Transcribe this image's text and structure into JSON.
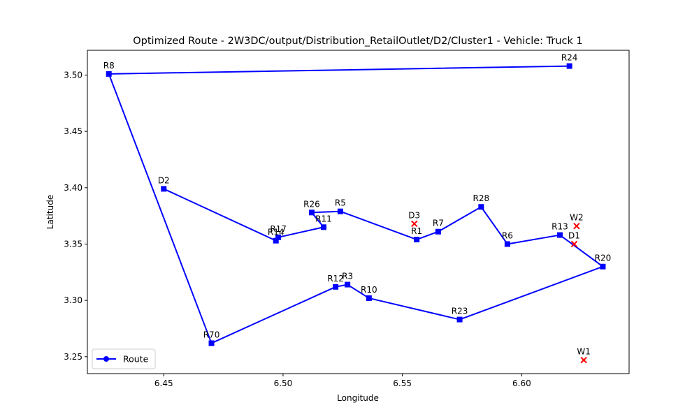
{
  "chart_data": {
    "type": "line",
    "title": "Optimized Route - 2W3DC/output/Distribution_RetailOutlet/D2/Cluster1 - Vehicle: Truck 1",
    "xlabel": "Longitude",
    "ylabel": "Latitude",
    "xlim": [
      6.418,
      6.645
    ],
    "ylim": [
      3.235,
      3.522
    ],
    "xticks": [
      "6.45",
      "6.50",
      "6.55",
      "6.60"
    ],
    "xtick_values": [
      6.45,
      6.5,
      6.55,
      6.6
    ],
    "yticks": [
      "3.25",
      "3.30",
      "3.35",
      "3.40",
      "3.45",
      "3.50"
    ],
    "ytick_values": [
      3.25,
      3.3,
      3.35,
      3.4,
      3.45,
      3.5
    ],
    "grid": false,
    "legend": {
      "position": "lower-left",
      "entries": [
        "Route"
      ]
    },
    "colors": {
      "route": "#0000ff",
      "depot_marker": "#ff0000"
    },
    "series": [
      {
        "name": "Route",
        "points": [
          {
            "label": "R24",
            "x": 6.62,
            "y": 3.508
          },
          {
            "label": "R8",
            "x": 6.427,
            "y": 3.501
          },
          {
            "label": "R70",
            "x": 6.47,
            "y": 3.262
          },
          {
            "label": "R12",
            "x": 6.522,
            "y": 3.312
          },
          {
            "label": "R3",
            "x": 6.527,
            "y": 3.314
          },
          {
            "label": "R10",
            "x": 6.536,
            "y": 3.302
          },
          {
            "label": "R23",
            "x": 6.574,
            "y": 3.283
          },
          {
            "label": "R20",
            "x": 6.634,
            "y": 3.33
          },
          {
            "label": "R13",
            "x": 6.616,
            "y": 3.358
          },
          {
            "label": "R6",
            "x": 6.594,
            "y": 3.35
          },
          {
            "label": "R28",
            "x": 6.583,
            "y": 3.383
          },
          {
            "label": "R7",
            "x": 6.565,
            "y": 3.361
          },
          {
            "label": "R1",
            "x": 6.556,
            "y": 3.354
          },
          {
            "label": "R5",
            "x": 6.524,
            "y": 3.379
          },
          {
            "label": "R26",
            "x": 6.512,
            "y": 3.378
          },
          {
            "label": "R11",
            "x": 6.517,
            "y": 3.365
          },
          {
            "label": "R17",
            "x": 6.498,
            "y": 3.356
          },
          {
            "label": "R14",
            "x": 6.497,
            "y": 3.353
          },
          {
            "label": "D2",
            "x": 6.45,
            "y": 3.399
          }
        ]
      }
    ],
    "markers": [
      {
        "label": "D3",
        "x": 6.555,
        "y": 3.368
      },
      {
        "label": "W2",
        "x": 6.623,
        "y": 3.366
      },
      {
        "label": "D1",
        "x": 6.622,
        "y": 3.35
      },
      {
        "label": "W1",
        "x": 6.626,
        "y": 3.247
      }
    ]
  }
}
